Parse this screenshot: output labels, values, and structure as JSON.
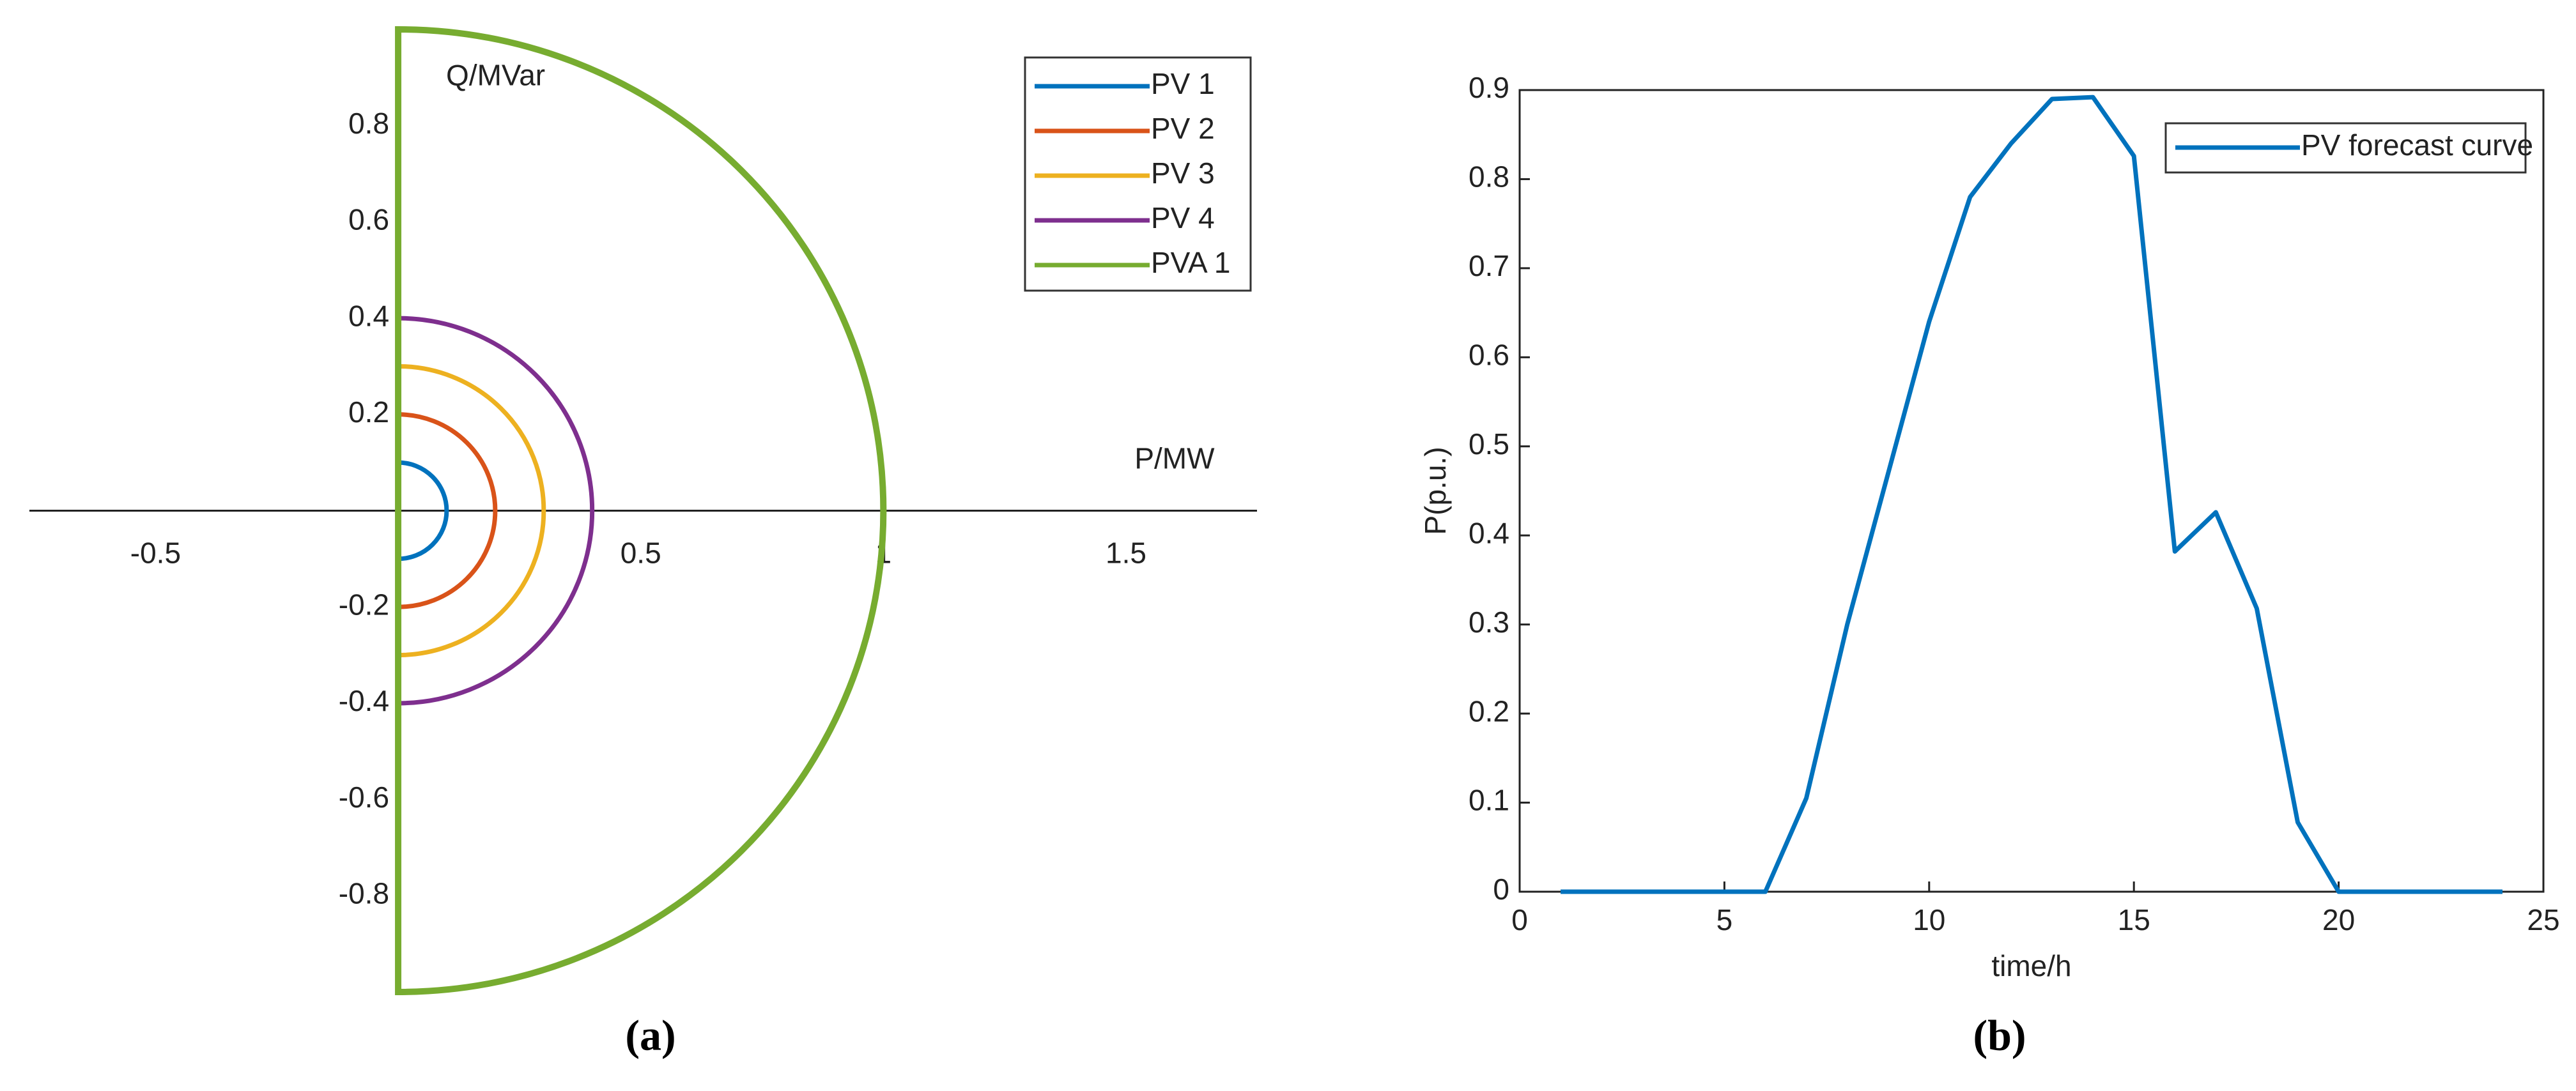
{
  "chart_data": [
    {
      "type": "semicircle",
      "xlabel": "P/MW",
      "ylabel": "Q/MVar",
      "xlim": [
        -0.76,
        1.77
      ],
      "ylim": [
        -1,
        1
      ],
      "xticks": [
        -0.5,
        0.5,
        1,
        1.5
      ],
      "yticks": [
        -0.8,
        -0.6,
        -0.4,
        -0.2,
        0.2,
        0.4,
        0.6,
        0.8
      ],
      "series": [
        {
          "name": "PV 1",
          "color": "#0072bd",
          "radius": 0.1
        },
        {
          "name": "PV 2",
          "color": "#d95319",
          "radius": 0.2
        },
        {
          "name": "PV 3",
          "color": "#edb120",
          "radius": 0.3
        },
        {
          "name": "PV 4",
          "color": "#7e2f8e",
          "radius": 0.4
        },
        {
          "name": "PVA 1",
          "color": "#77ac30",
          "radius": 1
        }
      ],
      "legend": "upper right",
      "caption": "(a)"
    },
    {
      "type": "line",
      "xlabel": "time/h",
      "ylabel": "P(p.u.)",
      "x": [
        1,
        2,
        3,
        4,
        5,
        6,
        7,
        8,
        9,
        10,
        11,
        12,
        13,
        14,
        15,
        16,
        17,
        18,
        19,
        20,
        21,
        22,
        23,
        24
      ],
      "series": [
        {
          "name": "PV forecast curve",
          "color": "#0072bd",
          "values": [
            0,
            0,
            0,
            0,
            0,
            0,
            0.105,
            0.3,
            0.47,
            0.64,
            0.78,
            0.84,
            0.89,
            0.892,
            0.826,
            0.382,
            0.426,
            0.318,
            0.078,
            0,
            0,
            0,
            0,
            0
          ]
        }
      ],
      "xlim": [
        0,
        25
      ],
      "ylim": [
        0,
        0.9
      ],
      "xticks": [
        0,
        5,
        10,
        15,
        20,
        25
      ],
      "yticks": [
        0,
        0.1,
        0.2,
        0.3,
        0.4,
        0.5,
        0.6,
        0.7,
        0.8,
        0.9
      ],
      "legend": "upper right",
      "caption": "(b)"
    }
  ]
}
